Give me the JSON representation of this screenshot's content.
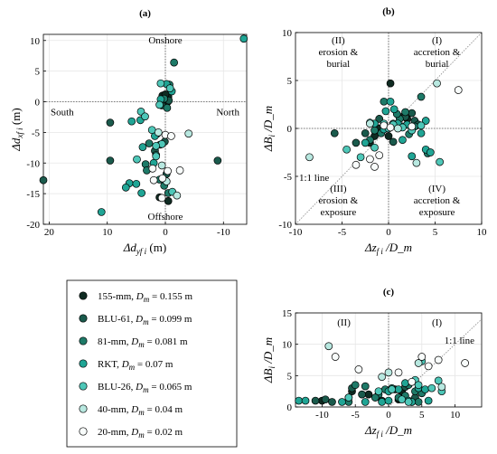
{
  "chart_data": [
    {
      "panel": "(a)",
      "type": "scatter",
      "xlabel": "Δd_yf i (m)",
      "ylabel": "Δd_xf i (m)",
      "xlim": [
        21,
        -14
      ],
      "ylim": [
        -20,
        11
      ],
      "xticks": [
        20,
        10,
        0,
        -10
      ],
      "yticks": [
        10,
        5,
        0,
        -5,
        -10,
        -15,
        -20
      ],
      "grid": true,
      "annotations": [
        "Onshore",
        "Offshore",
        "South",
        "North"
      ],
      "series": [
        {
          "name": "155-mm, D_m = 0.155 m",
          "color": "#0f2b22",
          "points": [
            [
              0.5,
              1.0
            ],
            [
              -0.5,
              0.8
            ],
            [
              0.3,
              0.3
            ],
            [
              -0.2,
              0.2
            ],
            [
              0.0,
              1.2
            ],
            [
              -0.4,
              0.0
            ],
            [
              0.2,
              -0.3
            ],
            [
              1.0,
              -15.6
            ],
            [
              -0.5,
              -16.2
            ]
          ]
        },
        {
          "name": "BLU-61, D_m = 0.099 m",
          "color": "#1a5a4c",
          "points": [
            [
              21.0,
              -12.8
            ],
            [
              9.5,
              -3.4
            ],
            [
              9.5,
              -9.6
            ],
            [
              -9.0,
              -9.6
            ],
            [
              -0.6,
              0.2
            ],
            [
              0.6,
              -0.6
            ],
            [
              0.1,
              -6.5
            ],
            [
              1.8,
              -8.0
            ],
            [
              -0.2,
              -11.8
            ]
          ]
        },
        {
          "name": "81-mm, D_m = 0.081 m",
          "color": "#1e7a68",
          "points": [
            [
              -1.5,
              6.4
            ],
            [
              -0.7,
              2.8
            ],
            [
              0.2,
              0.5
            ],
            [
              -0.3,
              -1.0
            ],
            [
              1.4,
              -5.2
            ],
            [
              2.8,
              -6.8
            ],
            [
              1.6,
              -8.7
            ],
            [
              0.9,
              -7.0
            ],
            [
              3.4,
              -10.2
            ],
            [
              3.2,
              -11.2
            ],
            [
              1.0,
              -12.7
            ],
            [
              0.2,
              -13.7
            ],
            [
              -0.5,
              -14.9
            ]
          ]
        },
        {
          "name": "RKT, D_m = 0.07 m",
          "color": "#20a595",
          "points": [
            [
              -13.5,
              10.3
            ],
            [
              -0.2,
              2.9
            ],
            [
              -1.1,
              1.7
            ],
            [
              0.8,
              0.4
            ],
            [
              5.8,
              -3.2
            ],
            [
              4.3,
              -3.0
            ],
            [
              1.8,
              -5.6
            ],
            [
              3.9,
              -7.4
            ],
            [
              2.0,
              -10.0
            ],
            [
              6.2,
              -13.3
            ],
            [
              6.8,
              -14.0
            ],
            [
              5.0,
              -13.4
            ],
            [
              4.1,
              -14.9
            ],
            [
              11.0,
              -18.0
            ]
          ]
        },
        {
          "name": "BLU-26, D_m = 0.065 m",
          "color": "#4ec7b8",
          "points": [
            [
              -0.8,
              2.2
            ],
            [
              0.8,
              3.0
            ],
            [
              1.0,
              -0.5
            ],
            [
              4.2,
              -1.6
            ],
            [
              3.5,
              -2.4
            ],
            [
              2.3,
              -4.6
            ],
            [
              0.6,
              -6.9
            ],
            [
              1.6,
              -7.2
            ],
            [
              1.6,
              -8.9
            ],
            [
              4.9,
              -9.4
            ],
            [
              -1.2,
              -14.7
            ]
          ]
        },
        {
          "name": "40-mm, D_m = 0.04 m",
          "color": "#b8e8e0",
          "points": [
            [
              1.2,
              -5.0
            ],
            [
              -4.0,
              -5.2
            ],
            [
              0.6,
              -10.4
            ],
            [
              -0.2,
              -13.0
            ],
            [
              -2.0,
              -15.3
            ]
          ]
        },
        {
          "name": "20-mm, D_m = 0.02 m",
          "color": "#f8fcfb",
          "points": [
            [
              0.0,
              -5.4
            ],
            [
              -1.0,
              -5.6
            ],
            [
              2.2,
              -10.9
            ],
            [
              -0.4,
              -11.3
            ],
            [
              -2.5,
              -11.2
            ],
            [
              0.5,
              -12.5
            ],
            [
              2.0,
              -12.8
            ],
            [
              0.6,
              -15.7
            ]
          ]
        }
      ]
    },
    {
      "panel": "(b)",
      "type": "scatter",
      "xlabel": "Δz_f i /D_m",
      "ylabel": "ΔB_i /D_m",
      "xlim": [
        -10,
        10
      ],
      "ylim": [
        -10,
        10
      ],
      "xticks": [
        -10,
        -5,
        0,
        5,
        10
      ],
      "yticks": [
        10,
        5,
        0,
        -5,
        -10
      ],
      "grid": true,
      "annotations": [
        "(II)",
        "erosion &",
        "burial",
        "(I)",
        "accretion &",
        "burial",
        "(III)",
        "erosion &",
        "exposure",
        "(IV)",
        "accretion &",
        "exposure",
        "1:1 line"
      ],
      "series": [
        {
          "name": "155-mm, D_m = 0.155 m",
          "color": "#0f2b22",
          "points": [
            [
              0.2,
              4.7
            ],
            [
              1.5,
              1.2
            ],
            [
              2.0,
              1.0
            ],
            [
              -1.5,
              -0.8
            ],
            [
              -2.0,
              -1.5
            ],
            [
              -1.0,
              0.0
            ],
            [
              0.0,
              -0.8
            ],
            [
              3.0,
              0.3
            ]
          ]
        },
        {
          "name": "BLU-61, D_m = 0.099 m",
          "color": "#1a5a4c",
          "points": [
            [
              -5.8,
              -0.5
            ],
            [
              -3.5,
              -1.5
            ],
            [
              -2.5,
              -0.5
            ],
            [
              1.8,
              1.2
            ],
            [
              2.8,
              0.8
            ],
            [
              -1.0,
              1.0
            ],
            [
              0.5,
              -1.4
            ],
            [
              2.5,
              1.6
            ],
            [
              3.2,
              0.4
            ]
          ]
        },
        {
          "name": "81-mm, D_m = 0.081 m",
          "color": "#1e7a68",
          "points": [
            [
              -0.5,
              2.8
            ],
            [
              0.5,
              0.5
            ],
            [
              1.2,
              1.0
            ],
            [
              1.8,
              1.7
            ],
            [
              2.2,
              -0.6
            ],
            [
              -0.8,
              -0.5
            ],
            [
              3.5,
              3.3
            ],
            [
              4.2,
              -2.6
            ],
            [
              -2.0,
              -1.2
            ],
            [
              2.8,
              0.2
            ],
            [
              1.5,
              0.2
            ],
            [
              0.9,
              1.5
            ],
            [
              -1.5,
              -0.2
            ]
          ]
        },
        {
          "name": "RKT, D_m = 0.07 m",
          "color": "#20a595",
          "points": [
            [
              0.2,
              2.8
            ],
            [
              -0.3,
              1.8
            ],
            [
              1.0,
              0.5
            ],
            [
              2.5,
              -2.9
            ],
            [
              4.0,
              -2.2
            ],
            [
              1.5,
              -1.2
            ],
            [
              -1.5,
              0.5
            ],
            [
              3.5,
              -0.5
            ],
            [
              4.0,
              0.8
            ],
            [
              -2.5,
              -1.5
            ],
            [
              2.0,
              0.4
            ],
            [
              4.5,
              -2.5
            ],
            [
              -0.5,
              -0.1
            ],
            [
              0.6,
              2.0
            ]
          ]
        },
        {
          "name": "BLU-26, D_m = 0.065 m",
          "color": "#4ec7b8",
          "points": [
            [
              -4.5,
              -2.2
            ],
            [
              -3.0,
              -3.0
            ],
            [
              -1.5,
              -2.0
            ],
            [
              0.0,
              0.0
            ],
            [
              -0.5,
              0.5
            ],
            [
              1.5,
              0.1
            ],
            [
              2.5,
              -0.2
            ],
            [
              3.5,
              0.3
            ],
            [
              -2.0,
              0.6
            ],
            [
              0.5,
              0.4
            ],
            [
              5.5,
              -3.5
            ]
          ]
        },
        {
          "name": "40-mm, D_m = 0.04 m",
          "color": "#b8e8e0",
          "points": [
            [
              -8.5,
              -3.0
            ],
            [
              -2.0,
              0.5
            ],
            [
              1.0,
              0.0
            ],
            [
              5.2,
              4.7
            ],
            [
              3.0,
              -3.6
            ]
          ]
        },
        {
          "name": "20-mm, D_m = 0.02 m",
          "color": "#f8fcfb",
          "points": [
            [
              -3.5,
              -3.8
            ],
            [
              -2.0,
              -3.2
            ],
            [
              -1.5,
              -4.0
            ],
            [
              -0.5,
              0.3
            ],
            [
              0.2,
              0.1
            ],
            [
              2.5,
              0.2
            ],
            [
              7.5,
              4.0
            ],
            [
              -1.0,
              -2.8
            ]
          ]
        }
      ]
    },
    {
      "panel": "(c)",
      "type": "scatter",
      "xlabel": "Δz_f i /D_m",
      "ylabel": "ΔB_i /D_m",
      "xlim": [
        -14,
        14
      ],
      "ylim": [
        0,
        15
      ],
      "xticks": [
        -10,
        -5,
        0,
        5,
        10
      ],
      "yticks": [
        15,
        10,
        5,
        0
      ],
      "grid": true,
      "annotations": [
        "(II)",
        "(I)",
        "1:1 line"
      ],
      "series": [
        {
          "name": "155-mm, D_m = 0.155 m",
          "color": "#0f2b22",
          "points": [
            [
              -10.0,
              1.0
            ],
            [
              -6.0,
              1.5
            ],
            [
              -5.5,
              2.5
            ],
            [
              -3.0,
              2.0
            ],
            [
              -1.0,
              1.0
            ],
            [
              1.5,
              1.2
            ],
            [
              2.0,
              2.5
            ],
            [
              3.0,
              1.0
            ]
          ]
        },
        {
          "name": "BLU-61, D_m = 0.099 m",
          "color": "#1a5a4c",
          "points": [
            [
              -11.0,
              1.0
            ],
            [
              -9.5,
              1.2
            ],
            [
              -8.5,
              0.8
            ],
            [
              -5.5,
              3.0
            ],
            [
              -4.0,
              2.0
            ],
            [
              2.5,
              3.2
            ],
            [
              3.5,
              0.8
            ],
            [
              1.0,
              2.8
            ],
            [
              4.0,
              1.5
            ]
          ]
        },
        {
          "name": "81-mm, D_m = 0.081 m",
          "color": "#1e7a68",
          "points": [
            [
              -6.0,
              0.8
            ],
            [
              -5.0,
              3.5
            ],
            [
              -3.5,
              3.3
            ],
            [
              -1.5,
              2.0
            ],
            [
              -0.5,
              2.8
            ],
            [
              1.5,
              1.5
            ],
            [
              2.5,
              1.8
            ],
            [
              4.0,
              2.5
            ],
            [
              4.5,
              0.8
            ],
            [
              3.0,
              3.5
            ],
            [
              0.5,
              3.0
            ],
            [
              -2.0,
              1.5
            ],
            [
              5.0,
              2.2
            ]
          ]
        },
        {
          "name": "RKT, D_m = 0.07 m",
          "color": "#20a595",
          "points": [
            [
              -13.5,
              1.0
            ],
            [
              -12.5,
              1.0
            ],
            [
              -7.0,
              0.8
            ],
            [
              -3.5,
              0.8
            ],
            [
              -1.0,
              0.8
            ],
            [
              0.0,
              1.0
            ],
            [
              1.5,
              2.8
            ],
            [
              2.5,
              3.8
            ],
            [
              3.0,
              1.0
            ],
            [
              4.5,
              3.0
            ],
            [
              5.5,
              2.8
            ],
            [
              6.0,
              1.0
            ],
            [
              0.0,
              2.5
            ],
            [
              3.5,
              0.8
            ]
          ]
        },
        {
          "name": "BLU-26, D_m = 0.065 m",
          "color": "#4ec7b8",
          "points": [
            [
              -6.0,
              1.5
            ],
            [
              -1.5,
              2.5
            ],
            [
              0.5,
              2.8
            ],
            [
              2.0,
              1.2
            ],
            [
              3.0,
              0.8
            ],
            [
              4.0,
              4.3
            ],
            [
              4.5,
              3.5
            ],
            [
              5.0,
              7.3
            ],
            [
              6.5,
              3.0
            ],
            [
              7.5,
              4.2
            ],
            [
              8.0,
              2.5
            ]
          ]
        },
        {
          "name": "40-mm, D_m = 0.04 m",
          "color": "#b8e8e0",
          "points": [
            [
              -9.0,
              9.7
            ],
            [
              -1.0,
              4.8
            ],
            [
              0.0,
              5.5
            ],
            [
              4.5,
              7.0
            ],
            [
              8.0,
              3.2
            ]
          ]
        },
        {
          "name": "20-mm, D_m = 0.02 m",
          "color": "#f8fcfb",
          "points": [
            [
              -8.0,
              8.0
            ],
            [
              -4.5,
              6.0
            ],
            [
              1.5,
              5.5
            ],
            [
              3.5,
              4.0
            ],
            [
              5.0,
              8.0
            ],
            [
              7.5,
              7.5
            ],
            [
              11.5,
              7.0
            ],
            [
              6.0,
              6.5
            ]
          ]
        }
      ]
    }
  ],
  "legend": [
    {
      "name": "155-mm,",
      "dm": "D",
      "sub": "m",
      "value": " = 0.155 m",
      "color": "#0f2b22"
    },
    {
      "name": "BLU-61,",
      "dm": "D",
      "sub": "m",
      "value": " = 0.099 m",
      "color": "#1a5a4c"
    },
    {
      "name": "81-mm,",
      "dm": "D",
      "sub": "m",
      "value": " = 0.081 m",
      "color": "#1e7a68"
    },
    {
      "name": "RKT,",
      "dm": "D",
      "sub": "m",
      "value": " = 0.07 m",
      "color": "#20a595"
    },
    {
      "name": "BLU-26,",
      "dm": "D",
      "sub": "m",
      "value": " = 0.065 m",
      "color": "#4ec7b8"
    },
    {
      "name": "40-mm,",
      "dm": "D",
      "sub": "m",
      "value": " = 0.04 m",
      "color": "#b8e8e0"
    },
    {
      "name": "20-mm,",
      "dm": "D",
      "sub": "m",
      "value": " = 0.02 m",
      "color": "#f8fcfb"
    }
  ]
}
